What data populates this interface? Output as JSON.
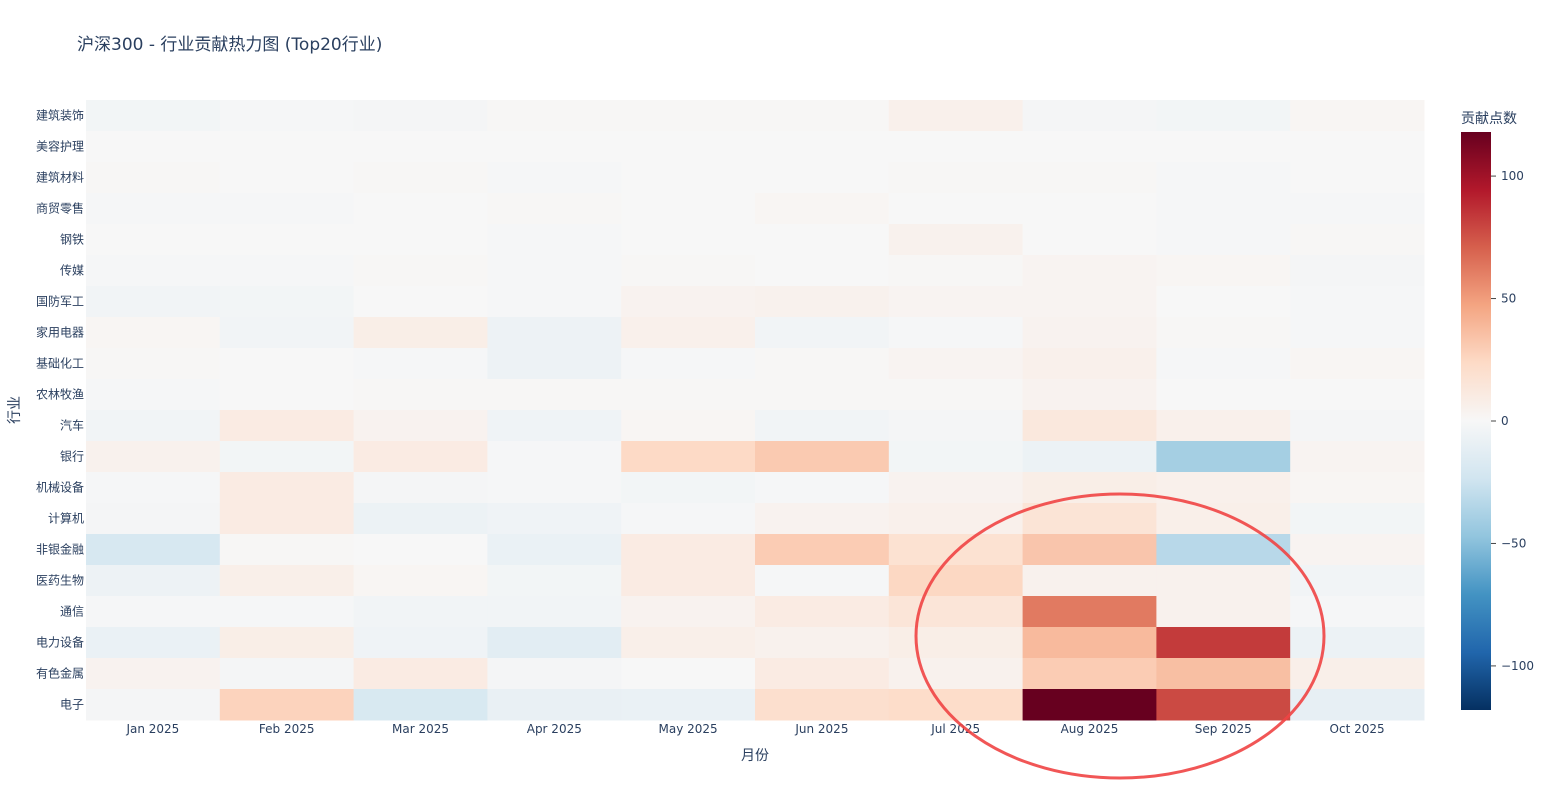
{
  "chart_data": {
    "type": "heatmap",
    "title": "沪深300 - 行业贡献热力图 (Top20行业)",
    "xlabel": "月份",
    "ylabel": "行业",
    "colorbar_title": "贡献点数",
    "colorbar_ticks": [
      100,
      50,
      0,
      -50,
      -100
    ],
    "zrange": [
      -118,
      118
    ],
    "colorscale": [
      "#053061",
      "#2166ac",
      "#4393c3",
      "#92c5de",
      "#d1e5f0",
      "#f7f7f7",
      "#fddbc7",
      "#f4a582",
      "#d6604d",
      "#b2182b",
      "#67001f"
    ],
    "x": [
      "Jan 2025",
      "Feb 2025",
      "Mar 2025",
      "Apr 2025",
      "May 2025",
      "Jun 2025",
      "Jul 2025",
      "Aug 2025",
      "Sep 2025",
      "Oct 2025"
    ],
    "y": [
      "建筑装饰",
      "美容护理",
      "建筑材料",
      "商贸零售",
      "钢铁",
      "传媒",
      "国防军工",
      "家用电器",
      "基础化工",
      "农林牧渔",
      "汽车",
      "银行",
      "机械设备",
      "计算机",
      "非银金融",
      "医药生物",
      "通信",
      "电力设备",
      "有色金属",
      "电子"
    ],
    "z": [
      [
        -3,
        -1,
        -2,
        1,
        1,
        1,
        6,
        -2,
        -3,
        2
      ],
      [
        0,
        0,
        0,
        0,
        0,
        0,
        0,
        0,
        0,
        0
      ],
      [
        1,
        0,
        1,
        -1,
        0,
        0,
        1,
        1,
        -1,
        0
      ],
      [
        -1,
        -1,
        0,
        1,
        0,
        2,
        0,
        0,
        -1,
        -1
      ],
      [
        0,
        0,
        0,
        -1,
        0,
        0,
        5,
        0,
        -1,
        1
      ],
      [
        -1,
        -1,
        1,
        -1,
        1,
        0,
        1,
        3,
        2,
        -2
      ],
      [
        -4,
        -3,
        0,
        -1,
        4,
        5,
        3,
        3,
        0,
        -1
      ],
      [
        2,
        -4,
        8,
        -6,
        6,
        -4,
        -1,
        4,
        1,
        -1
      ],
      [
        1,
        0,
        -1,
        -6,
        -1,
        1,
        3,
        6,
        -1,
        2
      ],
      [
        -1,
        0,
        1,
        1,
        1,
        1,
        1,
        4,
        0,
        0
      ],
      [
        -4,
        10,
        4,
        -5,
        2,
        -4,
        -2,
        13,
        6,
        -2
      ],
      [
        5,
        -3,
        10,
        -1,
        24,
        31,
        -3,
        -7,
        -40,
        3
      ],
      [
        -1,
        10,
        -2,
        -1,
        -3,
        -1,
        4,
        8,
        6,
        2
      ],
      [
        -2,
        10,
        -7,
        -5,
        -1,
        4,
        6,
        16,
        7,
        -3
      ],
      [
        -20,
        1,
        0,
        -8,
        10,
        30,
        18,
        33,
        -33,
        3
      ],
      [
        -6,
        7,
        2,
        -3,
        10,
        -1,
        25,
        5,
        5,
        -4
      ],
      [
        -1,
        -1,
        -4,
        -4,
        4,
        10,
        15,
        62,
        5,
        -1
      ],
      [
        -8,
        8,
        -5,
        -13,
        7,
        5,
        8,
        38,
        83,
        -7
      ],
      [
        4,
        -2,
        10,
        -2,
        0,
        10,
        5,
        30,
        36,
        7
      ],
      [
        -2,
        27,
        -19,
        -9,
        -8,
        20,
        22,
        118,
        78,
        -10
      ]
    ],
    "annotation": {
      "shape": "ellipse",
      "color": "#ef4444"
    }
  }
}
